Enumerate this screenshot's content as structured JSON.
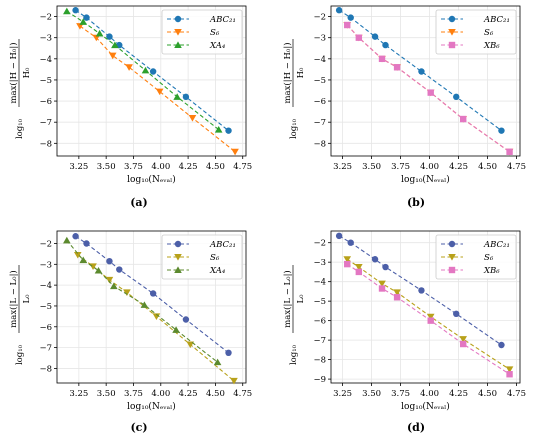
{
  "figure": {
    "captions": [
      "(a)",
      "(b)",
      "(c)",
      "(d)"
    ]
  },
  "chart_data": [
    {
      "type": "line",
      "xlabel": "log₁₀(Nₑᵥₐₗ)",
      "ylabel_top": "max(|H − H₀|)",
      "ylabel_bottom": "H₀",
      "ylabel_prefix": "log₁₀",
      "xlim": [
        3.05,
        4.78
      ],
      "ylim": [
        -8.6,
        -1.5
      ],
      "xticks": [
        "3.25",
        "3.50",
        "3.75",
        "4.00",
        "4.25",
        "4.50",
        "4.75"
      ],
      "xtick_values": [
        3.25,
        3.5,
        3.75,
        4.0,
        4.25,
        4.5,
        4.75
      ],
      "yticks": [
        "−2",
        "−3",
        "−4",
        "−5",
        "−6",
        "−7",
        "−8"
      ],
      "ytick_values": [
        -2,
        -3,
        -4,
        -5,
        -6,
        -7,
        -8
      ],
      "legend_position": "top-right",
      "series": [
        {
          "name": "ABC₂₁",
          "color": "#1f77b4",
          "marker": "circle",
          "x": [
            3.22,
            3.32,
            3.53,
            3.62,
            3.93,
            4.23,
            4.62
          ],
          "y": [
            -1.7,
            -2.05,
            -2.95,
            -3.35,
            -4.6,
            -5.8,
            -7.4
          ]
        },
        {
          "name": "S₆",
          "color": "#ff7f0e",
          "marker": "triangle-down",
          "x": [
            3.26,
            3.41,
            3.56,
            3.71,
            3.99,
            4.29,
            4.68
          ],
          "y": [
            -2.45,
            -3.0,
            -3.85,
            -4.4,
            -5.55,
            -6.8,
            -8.4
          ]
        },
        {
          "name": "XA₄",
          "color": "#2ca02c",
          "marker": "triangle-up",
          "x": [
            3.14,
            3.29,
            3.44,
            3.58,
            3.86,
            4.15,
            4.53
          ],
          "y": [
            -1.75,
            -2.25,
            -2.8,
            -3.35,
            -4.55,
            -5.8,
            -7.35
          ]
        }
      ]
    },
    {
      "type": "line",
      "xlabel": "log₁₀(Nₑᵥₐₗ)",
      "ylabel_top": "max(|H − H₀|)",
      "ylabel_bottom": "H₀",
      "ylabel_prefix": "log₁₀",
      "xlim": [
        3.15,
        4.78
      ],
      "ylim": [
        -8.6,
        -1.5
      ],
      "xticks": [
        "3.25",
        "3.50",
        "3.75",
        "4.00",
        "4.25",
        "4.50",
        "4.75"
      ],
      "xtick_values": [
        3.25,
        3.5,
        3.75,
        4.0,
        4.25,
        4.5,
        4.75
      ],
      "yticks": [
        "−2",
        "−3",
        "−4",
        "−5",
        "−6",
        "−7",
        "−8"
      ],
      "ytick_values": [
        -2,
        -3,
        -4,
        -5,
        -6,
        -7,
        -8
      ],
      "legend_position": "top-right",
      "series": [
        {
          "name": "ABC₂₁",
          "color": "#1f77b4",
          "marker": "circle",
          "x": [
            3.22,
            3.32,
            3.53,
            3.62,
            3.93,
            4.23,
            4.62
          ],
          "y": [
            -1.7,
            -2.05,
            -2.95,
            -3.35,
            -4.6,
            -5.8,
            -7.4
          ]
        },
        {
          "name": "S₆",
          "color": "#ff7f0e",
          "marker": "triangle-down",
          "x": [
            3.29,
            3.39,
            3.59,
            3.72,
            4.01,
            4.29,
            4.69
          ],
          "y": [
            -2.4,
            -3.0,
            -4.0,
            -4.4,
            -5.6,
            -6.85,
            -8.4
          ]
        },
        {
          "name": "XB₆",
          "color": "#e377c2",
          "marker": "square",
          "x": [
            3.29,
            3.39,
            3.59,
            3.72,
            4.01,
            4.29,
            4.69
          ],
          "y": [
            -2.4,
            -3.0,
            -4.0,
            -4.4,
            -5.6,
            -6.85,
            -8.4
          ]
        }
      ]
    },
    {
      "type": "line",
      "xlabel": "log₁₀(Nₑᵥₐₗ)",
      "ylabel_top": "max(|L − L₀|)",
      "ylabel_bottom": "L₀",
      "ylabel_prefix": "log₁₀",
      "xlim": [
        3.05,
        4.78
      ],
      "ylim": [
        -8.7,
        -1.4
      ],
      "xticks": [
        "3.25",
        "3.50",
        "3.75",
        "4.00",
        "4.25",
        "4.50",
        "4.75"
      ],
      "xtick_values": [
        3.25,
        3.5,
        3.75,
        4.0,
        4.25,
        4.5,
        4.75
      ],
      "yticks": [
        "−2",
        "−3",
        "−4",
        "−5",
        "−6",
        "−7",
        "−8"
      ],
      "ytick_values": [
        -2,
        -3,
        -4,
        -5,
        -6,
        -7,
        -8
      ],
      "legend_position": "top-right",
      "series": [
        {
          "name": "ABC₂₁",
          "color": "#4c5fa8",
          "marker": "circle",
          "x": [
            3.22,
            3.32,
            3.53,
            3.62,
            3.93,
            4.23,
            4.62
          ],
          "y": [
            -1.65,
            -2.0,
            -2.85,
            -3.25,
            -4.4,
            -5.65,
            -7.25
          ]
        },
        {
          "name": "S₆",
          "color": "#b8a11a",
          "marker": "triangle-down",
          "x": [
            3.24,
            3.38,
            3.53,
            3.69,
            3.96,
            4.27,
            4.67
          ],
          "y": [
            -2.55,
            -3.1,
            -3.75,
            -4.35,
            -5.5,
            -6.85,
            -8.6
          ]
        },
        {
          "name": "XA₄",
          "color": "#5c8a2e",
          "marker": "triangle-up",
          "x": [
            3.14,
            3.29,
            3.43,
            3.57,
            3.85,
            4.14,
            4.52
          ],
          "y": [
            -1.85,
            -2.8,
            -3.3,
            -4.05,
            -4.95,
            -6.15,
            -7.7
          ]
        }
      ]
    },
    {
      "type": "line",
      "xlabel": "log₁₀(Nₑᵥₐₗ)",
      "ylabel_top": "max(|L − L₀|)",
      "ylabel_bottom": "L₀",
      "ylabel_prefix": "log₁₀",
      "xlim": [
        3.15,
        4.78
      ],
      "ylim": [
        -9.2,
        -1.4
      ],
      "xticks": [
        "3.25",
        "3.50",
        "3.75",
        "4.00",
        "4.25",
        "4.50",
        "4.75"
      ],
      "xtick_values": [
        3.25,
        3.5,
        3.75,
        4.0,
        4.25,
        4.5,
        4.75
      ],
      "yticks": [
        "−2",
        "−3",
        "−4",
        "−5",
        "−6",
        "−7",
        "−8",
        "−9"
      ],
      "ytick_values": [
        -2,
        -3,
        -4,
        -5,
        -6,
        -7,
        -8,
        -9
      ],
      "legend_position": "top-right",
      "series": [
        {
          "name": "ABC₂₁",
          "color": "#4c5fa8",
          "marker": "circle",
          "x": [
            3.22,
            3.32,
            3.53,
            3.62,
            3.93,
            4.23,
            4.62
          ],
          "y": [
            -1.65,
            -2.0,
            -2.85,
            -3.25,
            -4.45,
            -5.65,
            -7.25
          ]
        },
        {
          "name": "S₆",
          "color": "#b8a11a",
          "marker": "triangle-down",
          "x": [
            3.29,
            3.39,
            3.59,
            3.72,
            4.01,
            4.29,
            4.69
          ],
          "y": [
            -2.85,
            -3.25,
            -4.1,
            -4.55,
            -5.8,
            -6.95,
            -8.5
          ]
        },
        {
          "name": "XB₆",
          "color": "#e377c2",
          "marker": "square",
          "x": [
            3.29,
            3.39,
            3.59,
            3.72,
            4.01,
            4.29,
            4.69
          ],
          "y": [
            -3.1,
            -3.5,
            -4.35,
            -4.8,
            -6.0,
            -7.2,
            -8.75
          ]
        }
      ]
    }
  ]
}
